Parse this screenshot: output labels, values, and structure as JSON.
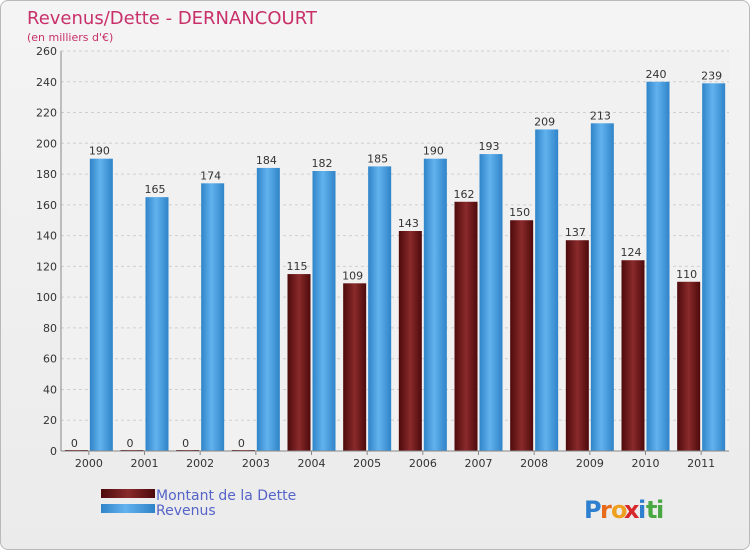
{
  "chart_data": {
    "type": "bar",
    "title": "Revenus/Dette - DERNANCOURT",
    "subtitle": "(en milliers d'€)",
    "categories": [
      "2000",
      "2001",
      "2002",
      "2003",
      "2004",
      "2005",
      "2006",
      "2007",
      "2008",
      "2009",
      "2010",
      "2011"
    ],
    "series": [
      {
        "name": "Montant de la Dette",
        "color": "#7a1416",
        "values": [
          0,
          0,
          0,
          0,
          115,
          109,
          143,
          162,
          150,
          137,
          124,
          110
        ]
      },
      {
        "name": "Revenus",
        "color": "#4aa0e2",
        "values": [
          190,
          165,
          174,
          184,
          182,
          185,
          190,
          193,
          209,
          213,
          240,
          239
        ]
      }
    ],
    "ylim": [
      0,
      260
    ],
    "yticks": [
      0,
      20,
      40,
      60,
      80,
      100,
      120,
      140,
      160,
      180,
      200,
      220,
      240,
      260
    ],
    "grid": true,
    "legend": "bottom-left"
  },
  "brand": {
    "text": "Proxiti",
    "letters": [
      "P",
      "r",
      "o",
      "x",
      "i",
      "t",
      "i"
    ],
    "colors": [
      "#2f7fd0",
      "#e86a1c",
      "#f0a020",
      "#d8282c",
      "#2f7fd0",
      "#49a842",
      "#49a842"
    ]
  }
}
